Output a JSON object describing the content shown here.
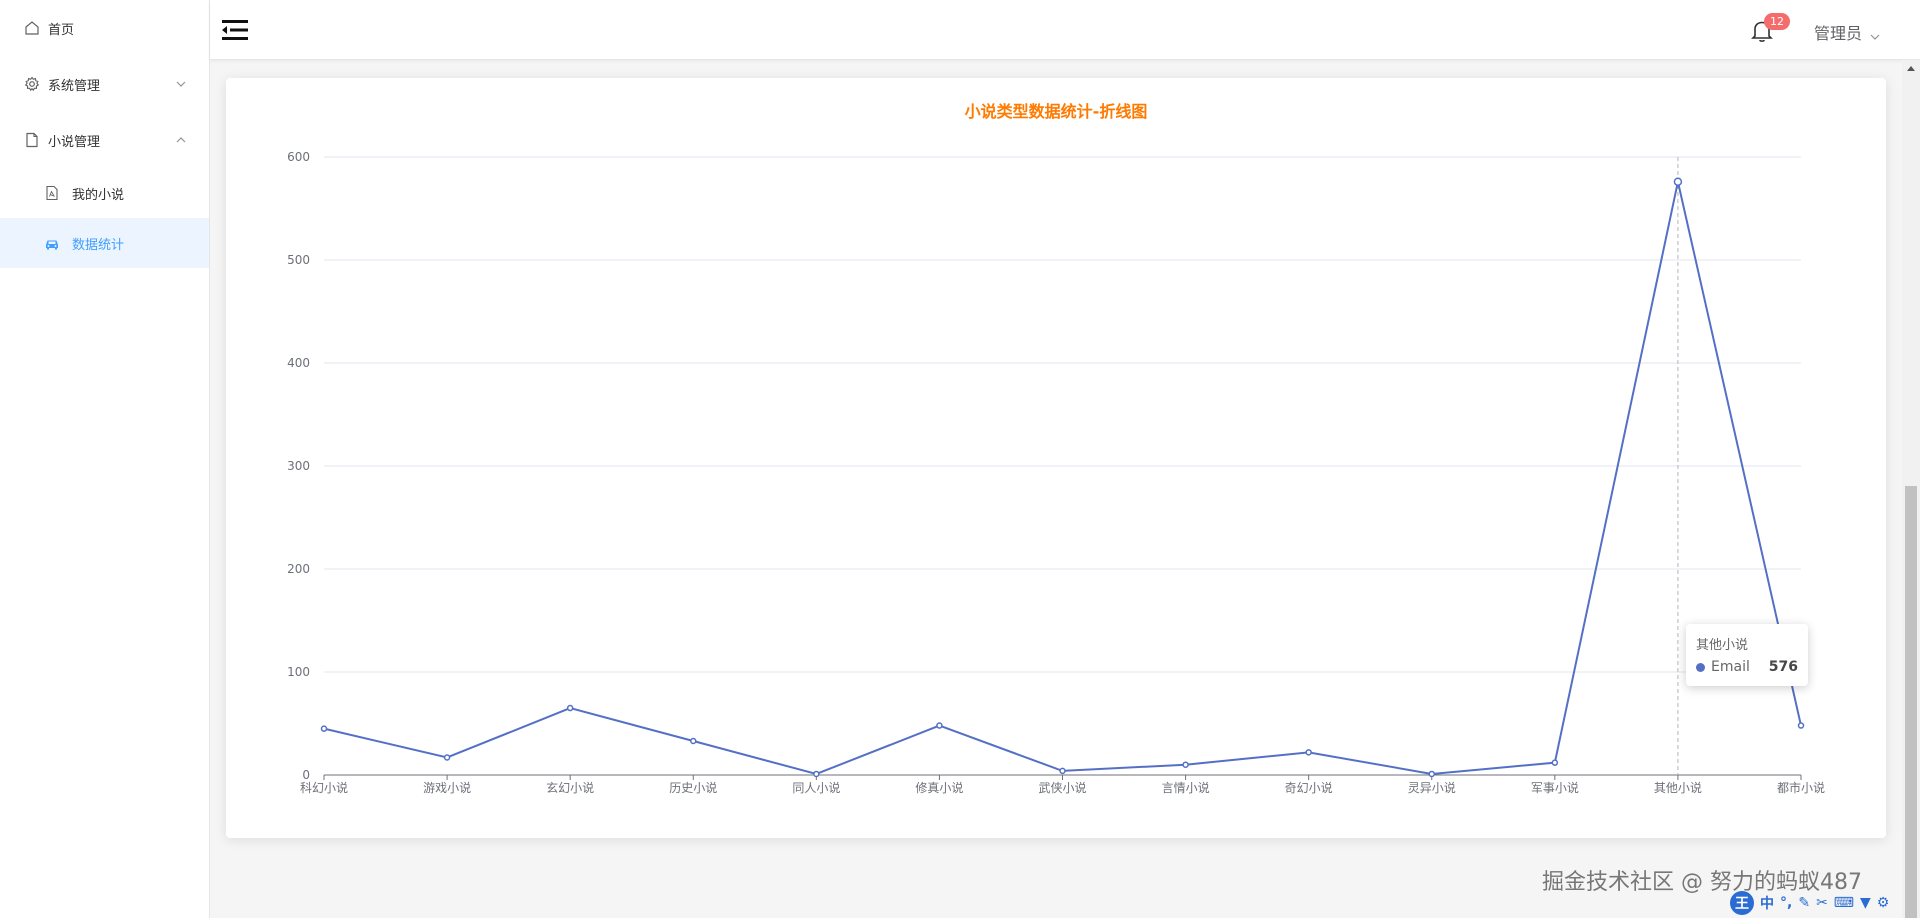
{
  "sidebar": {
    "items": [
      {
        "label": "首页",
        "icon": "home-icon"
      },
      {
        "label": "系统管理",
        "icon": "gear-icon",
        "expanded": false
      },
      {
        "label": "小说管理",
        "icon": "document-icon",
        "expanded": true,
        "children": [
          {
            "label": "我的小说",
            "icon": "pdf-file-icon",
            "active": false
          },
          {
            "label": "数据统计",
            "icon": "car-icon",
            "active": true
          }
        ]
      }
    ]
  },
  "header": {
    "notification_count": "12",
    "user_name": "管理员"
  },
  "chart": {
    "title": "小说类型数据统计-折线图",
    "tooltip": {
      "title": "其他小说",
      "series": "Email",
      "value": "576"
    }
  },
  "chart_data": {
    "type": "line",
    "title": "小说类型数据统计-折线图",
    "categories": [
      "科幻小说",
      "游戏小说",
      "玄幻小说",
      "历史小说",
      "同人小说",
      "修真小说",
      "武侠小说",
      "言情小说",
      "奇幻小说",
      "灵异小说",
      "军事小说",
      "其他小说",
      "都市小说"
    ],
    "series": [
      {
        "name": "Email",
        "values": [
          45,
          17,
          65,
          33,
          1,
          48,
          4,
          10,
          22,
          1,
          12,
          576,
          48
        ],
        "color": "#5470c6"
      }
    ],
    "ylim": [
      0,
      600
    ],
    "yticks": [
      0,
      100,
      200,
      300,
      400,
      500,
      600
    ],
    "grid": true,
    "highlight_category": "其他小说"
  },
  "watermark": "掘金技术社区 @ 努力的蚂蚁487",
  "ime": {
    "logo": "王",
    "mode": "中"
  },
  "colors": {
    "accent": "#409eff",
    "title": "#ff7a00",
    "line": "#5470c6",
    "badge": "#f56c6c"
  }
}
